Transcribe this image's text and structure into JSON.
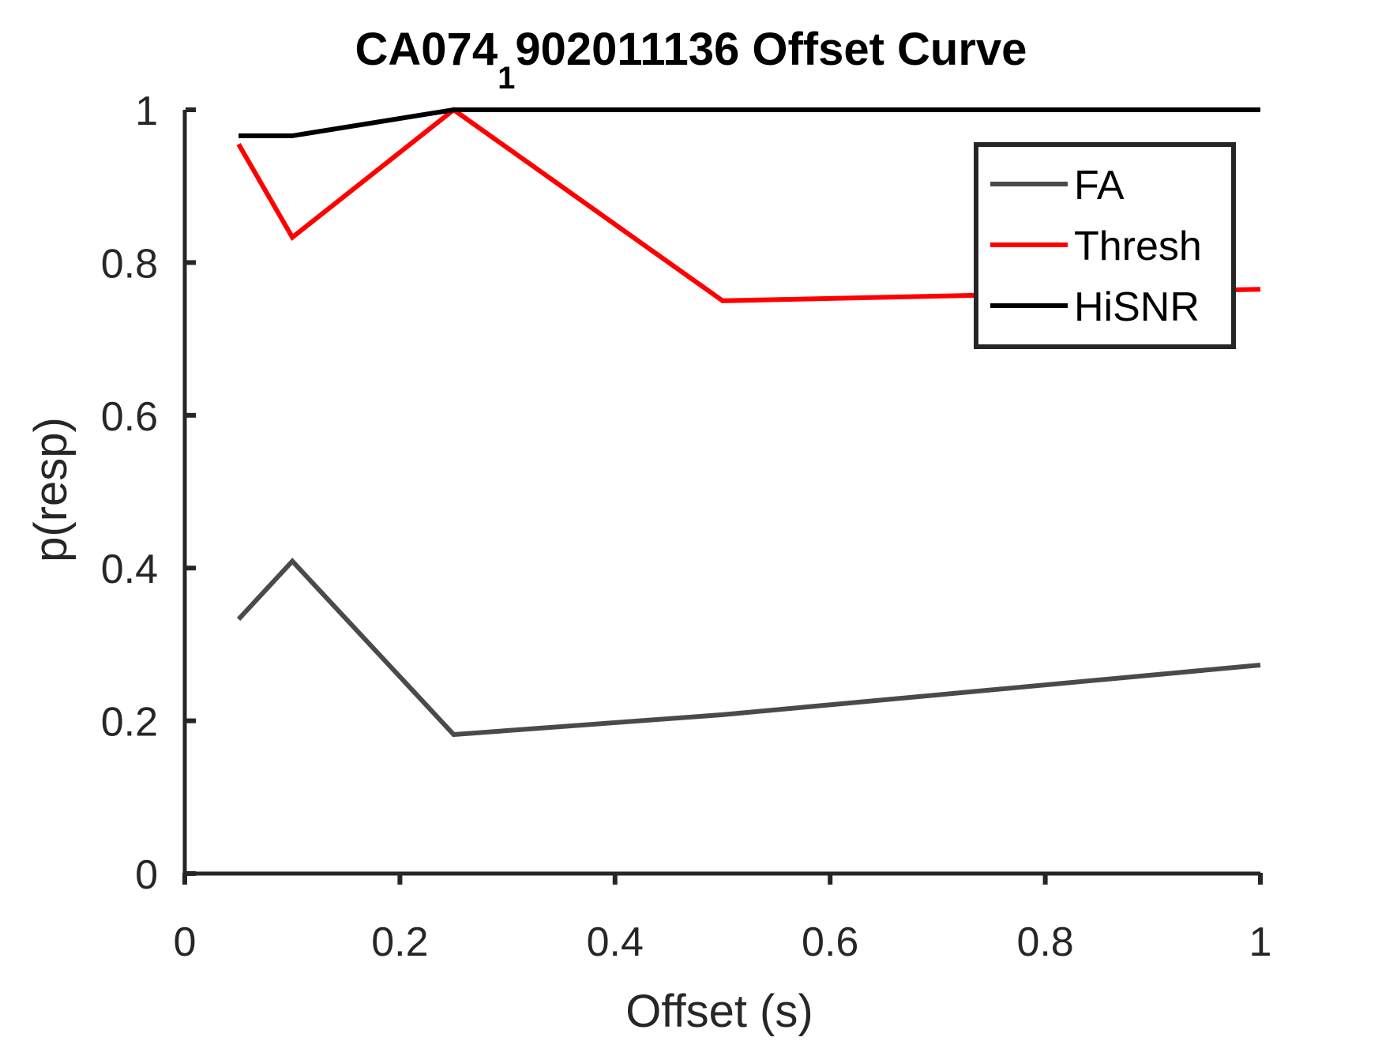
{
  "chart_data": {
    "type": "line",
    "title": {
      "prefix": "CA074",
      "subscript": "1",
      "suffix": "902011136 Offset Curve"
    },
    "xlabel": "Offset (s)",
    "ylabel": "p(resp)",
    "xlim": [
      0,
      1
    ],
    "ylim": [
      0,
      1
    ],
    "xticks": [
      0,
      0.2,
      0.4,
      0.6,
      0.8,
      1
    ],
    "xtick_labels": [
      "0",
      "0.2",
      "0.4",
      "0.6",
      "0.8",
      "1"
    ],
    "yticks": [
      0,
      0.2,
      0.4,
      0.6,
      0.8,
      1
    ],
    "ytick_labels": [
      "0",
      "0.2",
      "0.4",
      "0.6",
      "0.8",
      "1"
    ],
    "grid": false,
    "legend": {
      "placement": "top-right",
      "boxed": true
    },
    "x": [
      0.05,
      0.1,
      0.25,
      0.5,
      1.0
    ],
    "series": [
      {
        "name": "FA",
        "color": "#4a4a4d",
        "values": [
          0.333,
          0.409,
          0.182,
          0.208,
          0.273
        ]
      },
      {
        "name": "Thresh",
        "color": "#ff0000",
        "values": [
          0.955,
          0.833,
          1.0,
          0.75,
          0.765
        ]
      },
      {
        "name": "HiSNR",
        "color": "#000000",
        "values": [
          0.966,
          0.966,
          1.0,
          1.0,
          1.0
        ]
      }
    ]
  }
}
